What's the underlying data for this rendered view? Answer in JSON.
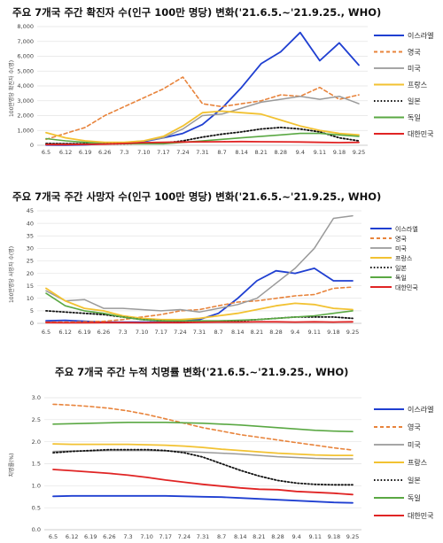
{
  "chart_data": [
    {
      "type": "line",
      "title": "주요 7개국 주간 확진자 수(인구 100만 명당) 변화('21.6.5.~'21.9.25., WHO)",
      "ylabel": "100만명당 확진자 수(명)",
      "ylim": [
        0,
        8000
      ],
      "yticks": [
        "0",
        "1,000",
        "2,000",
        "3,000",
        "4,000",
        "5,000",
        "6,000",
        "7,000",
        "8,000"
      ],
      "categories": [
        "6.5",
        "6.12",
        "6.19",
        "6.26",
        "7.3",
        "7.10",
        "7.17",
        "7.24",
        "7.31",
        "8.7",
        "8.14",
        "8.21",
        "8.28",
        "9.4",
        "9.11",
        "9.18",
        "9.25"
      ],
      "legend_position": "right",
      "series": [
        {
          "name": "이스라엘",
          "values": [
            20,
            10,
            30,
            100,
            150,
            250,
            500,
            800,
            1400,
            2500,
            3900,
            5500,
            6300,
            7600,
            5700,
            6900,
            5400
          ]
        },
        {
          "name": "영국",
          "values": [
            400,
            800,
            1200,
            2000,
            2600,
            3200,
            3800,
            4600,
            2800,
            2600,
            2800,
            3000,
            3400,
            3300,
            3900,
            3100,
            3400
          ]
        },
        {
          "name": "미국",
          "values": [
            100,
            120,
            100,
            100,
            200,
            300,
            500,
            1100,
            2000,
            2100,
            2500,
            2900,
            3100,
            3300,
            3100,
            3300,
            2800
          ]
        },
        {
          "name": "프랑스",
          "values": [
            850,
            500,
            300,
            200,
            200,
            300,
            600,
            1300,
            2200,
            2300,
            2200,
            2100,
            1700,
            1300,
            1000,
            800,
            700
          ]
        },
        {
          "name": "일본",
          "values": [
            120,
            100,
            100,
            100,
            100,
            120,
            150,
            300,
            550,
            750,
            900,
            1100,
            1200,
            1100,
            900,
            500,
            300
          ]
        },
        {
          "name": "독일",
          "values": [
            450,
            300,
            200,
            100,
            100,
            100,
            100,
            200,
            300,
            400,
            500,
            600,
            700,
            800,
            800,
            700,
            600
          ]
        },
        {
          "name": "대한민국",
          "values": [
            50,
            50,
            60,
            80,
            120,
            180,
            200,
            220,
            230,
            240,
            250,
            240,
            230,
            220,
            200,
            180,
            200
          ]
        }
      ]
    },
    {
      "type": "line",
      "title": "주요 7개국 주간 사망자 수(인구 100만 명당) 변화('21.6.5.~'21.9.25., WHO)",
      "ylabel": "100만명당 사망자 수(명)",
      "ylim": [
        0,
        45
      ],
      "yticks": [
        "0",
        "5",
        "10",
        "15",
        "20",
        "25",
        "30",
        "35",
        "40",
        "45"
      ],
      "categories": [
        "6.5",
        "6.12",
        "6.19",
        "6.26",
        "7.3",
        "7.10",
        "7.17",
        "7.24",
        "7.31",
        "8.7",
        "8.14",
        "8.21",
        "8.28",
        "9.4",
        "9.11",
        "9.18",
        "9.25"
      ],
      "legend_position": "right",
      "series": [
        {
          "name": "이스라엘",
          "values": [
            1.0,
            1.2,
            0.8,
            0.5,
            0.5,
            0.5,
            0.5,
            0.8,
            1.5,
            4.0,
            10.0,
            17.0,
            21.0,
            20.0,
            22.0,
            17.0,
            17.0
          ]
        },
        {
          "name": "영국",
          "values": [
            0.5,
            0.5,
            0.6,
            0.8,
            1.5,
            2.5,
            3.5,
            5.0,
            5.5,
            7.0,
            8.5,
            9.0,
            10.0,
            11.0,
            11.5,
            14.0,
            14.5
          ]
        },
        {
          "name": "미국",
          "values": [
            13.0,
            9.0,
            9.5,
            6.0,
            6.0,
            5.5,
            5.0,
            5.5,
            4.5,
            6.0,
            7.5,
            10.0,
            16.0,
            22.0,
            30.0,
            42.0,
            43.0
          ]
        },
        {
          "name": "프랑스",
          "values": [
            14.0,
            9.0,
            6.0,
            5.0,
            3.0,
            2.0,
            1.5,
            1.5,
            2.0,
            3.0,
            4.0,
            5.5,
            7.0,
            8.0,
            7.5,
            6.0,
            5.5
          ]
        },
        {
          "name": "일본",
          "values": [
            5.0,
            4.5,
            4.0,
            3.5,
            2.5,
            1.5,
            1.0,
            0.8,
            0.8,
            0.8,
            1.0,
            1.5,
            2.0,
            2.5,
            2.5,
            2.5,
            2.0
          ]
        },
        {
          "name": "독일",
          "values": [
            12.0,
            7.0,
            5.0,
            4.0,
            2.5,
            1.5,
            1.0,
            1.0,
            1.0,
            1.0,
            1.2,
            1.5,
            2.0,
            2.5,
            3.0,
            4.0,
            5.0
          ]
        },
        {
          "name": "대한민국",
          "values": [
            0.3,
            0.2,
            0.2,
            0.3,
            0.3,
            0.2,
            0.3,
            0.3,
            0.4,
            0.5,
            0.5,
            0.6,
            0.6,
            0.5,
            0.6,
            0.5,
            0.6
          ]
        }
      ]
    },
    {
      "type": "line",
      "title": "주요 7개국 주간 누적 치명률 변화('21.6.5.~'21.9.25., WHO)",
      "ylabel": "치명률(%)",
      "ylim": [
        0,
        3.0
      ],
      "yticks": [
        "0.0",
        "0.5",
        "1.0",
        "1.5",
        "2.0",
        "2.5",
        "3.0"
      ],
      "categories": [
        "6.5",
        "6.12",
        "6.19",
        "6.26",
        "7.3",
        "7.10",
        "7.17",
        "7.24",
        "7.31",
        "8.7",
        "8.14",
        "8.21",
        "8.28",
        "9.4",
        "9.11",
        "9.18",
        "9.25"
      ],
      "legend_position": "right",
      "series": [
        {
          "name": "이스라엘",
          "values": [
            0.76,
            0.77,
            0.77,
            0.77,
            0.77,
            0.77,
            0.77,
            0.76,
            0.75,
            0.74,
            0.72,
            0.7,
            0.68,
            0.66,
            0.64,
            0.62,
            0.61
          ]
        },
        {
          "name": "영국",
          "values": [
            2.85,
            2.83,
            2.8,
            2.76,
            2.7,
            2.62,
            2.52,
            2.42,
            2.32,
            2.24,
            2.16,
            2.1,
            2.04,
            1.98,
            1.92,
            1.86,
            1.81
          ]
        },
        {
          "name": "미국",
          "values": [
            1.78,
            1.79,
            1.79,
            1.8,
            1.8,
            1.8,
            1.79,
            1.78,
            1.76,
            1.74,
            1.72,
            1.69,
            1.66,
            1.64,
            1.62,
            1.61,
            1.61
          ]
        },
        {
          "name": "프랑스",
          "values": [
            1.95,
            1.94,
            1.94,
            1.94,
            1.94,
            1.93,
            1.92,
            1.9,
            1.87,
            1.83,
            1.8,
            1.77,
            1.74,
            1.72,
            1.7,
            1.69,
            1.69
          ]
        },
        {
          "name": "일본",
          "values": [
            1.75,
            1.78,
            1.8,
            1.82,
            1.82,
            1.82,
            1.8,
            1.75,
            1.65,
            1.5,
            1.35,
            1.22,
            1.12,
            1.06,
            1.03,
            1.02,
            1.02
          ]
        },
        {
          "name": "독일",
          "values": [
            2.4,
            2.41,
            2.42,
            2.43,
            2.44,
            2.44,
            2.44,
            2.43,
            2.42,
            2.4,
            2.38,
            2.35,
            2.32,
            2.29,
            2.26,
            2.24,
            2.23
          ]
        },
        {
          "name": "대한민국",
          "values": [
            1.37,
            1.34,
            1.31,
            1.28,
            1.24,
            1.19,
            1.13,
            1.08,
            1.03,
            0.99,
            0.95,
            0.92,
            0.91,
            0.87,
            0.85,
            0.83,
            0.8
          ]
        }
      ]
    }
  ],
  "series_styles": [
    {
      "color": "#1f3fd1",
      "dash": "",
      "width": 1.8
    },
    {
      "color": "#e8843c",
      "dash": "4,3",
      "width": 1.6
    },
    {
      "color": "#9a9a9a",
      "dash": "",
      "width": 1.5
    },
    {
      "color": "#f2c232",
      "dash": "",
      "width": 1.8
    },
    {
      "color": "#111111",
      "dash": "1.6,2.2",
      "width": 1.8
    },
    {
      "color": "#5aa843",
      "dash": "",
      "width": 1.6
    },
    {
      "color": "#e02424",
      "dash": "",
      "width": 1.8
    }
  ]
}
